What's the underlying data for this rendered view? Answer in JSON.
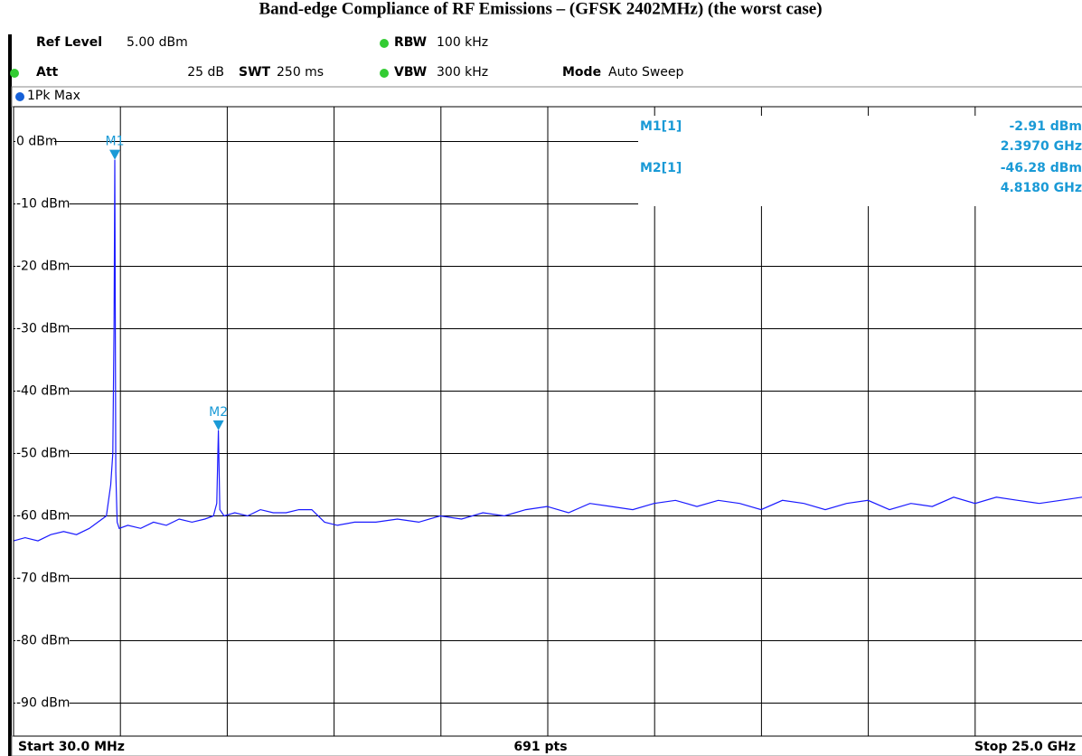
{
  "chart_data": {
    "type": "line",
    "title": "Band-edge Compliance of RF Emissions – (GFSK 2402MHz) (the worst case)",
    "header": {
      "ref_level_label": "Ref Level",
      "ref_level": "5.00 dBm",
      "att_label": "Att",
      "att": "25 dB",
      "swt_label": "SWT",
      "swt": "250 ms",
      "rbw_label": "RBW",
      "rbw": "100 kHz",
      "vbw_label": "VBW",
      "vbw": "300 kHz",
      "mode_label": "Mode",
      "mode": "Auto Sweep",
      "trace": "1Pk Max"
    },
    "footer": {
      "start": "Start 30.0 MHz",
      "points": "691 pts",
      "stop": "Stop 25.0 GHz"
    },
    "xlim": [
      0.03,
      25
    ],
    "ylim": [
      -95,
      5
    ],
    "xticks": [
      2.527,
      5.024,
      7.521,
      10.018,
      12.515,
      15.012,
      17.509,
      20.006,
      22.503
    ],
    "yticks": [
      {
        "value": 0,
        "label": "0 dBm"
      },
      {
        "value": -10,
        "label": "-10 dBm"
      },
      {
        "value": -20,
        "label": "-20 dBm"
      },
      {
        "value": -30,
        "label": "-30 dBm"
      },
      {
        "value": -40,
        "label": "-40 dBm"
      },
      {
        "value": -50,
        "label": "-50 dBm"
      },
      {
        "value": -60,
        "label": "-60 dBm"
      },
      {
        "value": -70,
        "label": "-70 dBm"
      },
      {
        "value": -80,
        "label": "-80 dBm"
      },
      {
        "value": -90,
        "label": "-90 dBm"
      }
    ],
    "grid": true,
    "series": [
      {
        "color": "#1a1aff",
        "x": [
          0.03,
          0.3,
          0.6,
          0.9,
          1.2,
          1.5,
          1.8,
          2.0,
          2.2,
          2.3,
          2.35,
          2.38,
          2.397,
          2.42,
          2.45,
          2.5,
          2.7,
          3.0,
          3.3,
          3.6,
          3.9,
          4.2,
          4.5,
          4.7,
          4.78,
          4.818,
          4.85,
          4.95,
          5.2,
          5.5,
          5.8,
          6.1,
          6.4,
          6.7,
          7.0,
          7.3,
          7.6,
          8.0,
          8.5,
          9.0,
          9.5,
          10.0,
          10.5,
          11.0,
          11.5,
          12.0,
          12.5,
          13.0,
          13.5,
          14.0,
          14.5,
          15.0,
          15.5,
          16.0,
          16.5,
          17.0,
          17.5,
          18.0,
          18.5,
          19.0,
          19.5,
          20.0,
          20.5,
          21.0,
          21.5,
          22.0,
          22.5,
          23.0,
          23.5,
          24.0,
          24.5,
          25.0
        ],
        "values": [
          -64,
          -63.5,
          -64,
          -63,
          -62.5,
          -63,
          -62,
          -61,
          -60,
          -55,
          -50,
          -29,
          -2.91,
          -53,
          -61,
          -62,
          -61.5,
          -62,
          -61,
          -61.5,
          -60.5,
          -61,
          -60.5,
          -60,
          -58,
          -46.28,
          -59,
          -60,
          -59.5,
          -60,
          -59,
          -59.5,
          -59.5,
          -59,
          -59,
          -61,
          -61.5,
          -61,
          -61,
          -60.5,
          -61,
          -60,
          -60.5,
          -59.5,
          -60,
          -59,
          -58.5,
          -59.5,
          -58,
          -58.5,
          -59,
          -58,
          -57.5,
          -58.5,
          -57.5,
          -58,
          -59,
          -57.5,
          -58,
          -59,
          -58,
          -57.5,
          -59,
          -58,
          -58.5,
          -57,
          -58,
          -57,
          -57.5,
          -58,
          -57.5,
          -57
        ]
      }
    ],
    "markers": [
      {
        "name": "M1",
        "label": "M1[1]",
        "x": 2.397,
        "y": -2.91,
        "value_label": "-2.91 dBm",
        "x_label": "2.3970 GHz"
      },
      {
        "name": "M2",
        "label": "M2[1]",
        "x": 4.818,
        "y": -46.28,
        "value_label": "-46.28 dBm",
        "x_label": "4.8180 GHz"
      }
    ]
  }
}
